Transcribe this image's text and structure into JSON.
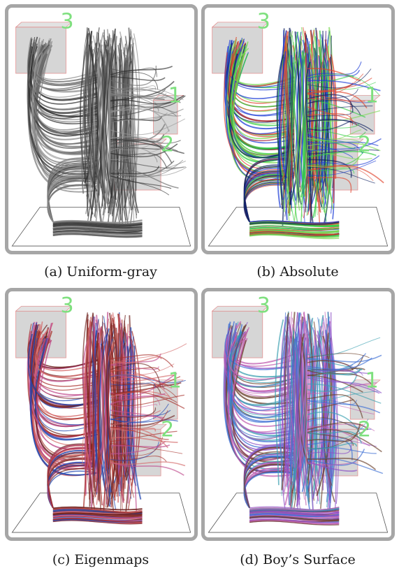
{
  "figure": {
    "panels": [
      {
        "id": "a",
        "caption": "(a) Uniform-gray",
        "scheme": "uniform-gray",
        "colors": [
          "#4a4a4a",
          "#6a6a6a",
          "#8a8a8a",
          "#2f2f2f",
          "#9a9a9a"
        ],
        "labels": [
          "3",
          "1",
          "2"
        ]
      },
      {
        "id": "b",
        "caption": "(b) Absolute",
        "scheme": "absolute",
        "colors": [
          "#2ecc40",
          "#e0422b",
          "#1f3fd6",
          "#7ed957",
          "#0c1f5f"
        ],
        "labels": [
          "3",
          "1",
          "2"
        ]
      },
      {
        "id": "c",
        "caption": "(c) Eigenmaps",
        "scheme": "eigenmaps",
        "colors": [
          "#a8302b",
          "#d46a6a",
          "#c04f8f",
          "#1f46b0",
          "#6f2320"
        ],
        "labels": [
          "3",
          "1",
          "2"
        ]
      },
      {
        "id": "d",
        "caption": "(d) Boy’s Surface",
        "scheme": "boys-surface",
        "colors": [
          "#8b4fc6",
          "#3a9fb0",
          "#6a3f2a",
          "#c15fb0",
          "#3e6fd4"
        ],
        "labels": [
          "3",
          "1",
          "2"
        ]
      }
    ],
    "label_color": "#7ee07e",
    "box_color": "#cfcfcf",
    "box_edge_color": "#e08080"
  }
}
